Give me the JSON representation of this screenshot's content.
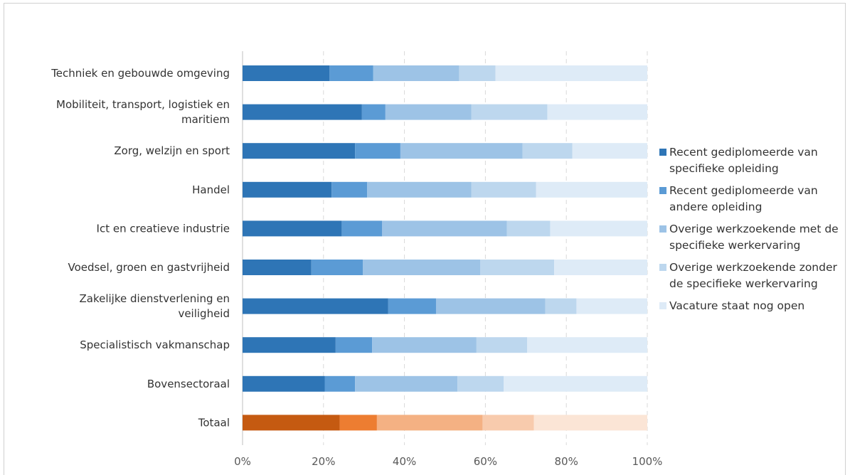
{
  "chart_data": {
    "type": "bar",
    "orientation": "horizontal",
    "stacked": true,
    "percent_stacked": true,
    "categories": [
      [
        "Techniek en gebouwde omgeving"
      ],
      [
        "Mobiliteit, transport, logistiek en",
        "maritiem"
      ],
      [
        "Zorg, welzijn en sport"
      ],
      [
        "Handel"
      ],
      [
        "Ict en creatieve industrie"
      ],
      [
        "Voedsel, groen en gastvrijheid"
      ],
      [
        "Zakelijke dienstverlening en",
        "veiligheid"
      ],
      [
        "Specialistisch vakmanschap"
      ],
      [
        "Bovensectoraal"
      ],
      [
        "Totaal"
      ]
    ],
    "series": [
      {
        "name": [
          "Recent gediplomeerde van",
          "specifieke opleiding"
        ],
        "color": "#2e75b6",
        "highlight_color": "#c55a11",
        "values": [
          21.5,
          29.5,
          27.8,
          22.0,
          24.5,
          17.0,
          36.0,
          23.0,
          20.3,
          24.0
        ]
      },
      {
        "name": [
          "Recent gediplomeerde van",
          "andere opleiding"
        ],
        "color": "#5b9bd5",
        "highlight_color": "#ed7d31",
        "values": [
          10.8,
          5.8,
          11.2,
          8.8,
          10.0,
          12.7,
          11.8,
          9.0,
          7.5,
          9.2
        ]
      },
      {
        "name": [
          "Overige werkzoekende met de",
          "specifieke werkervaring"
        ],
        "color": "#9dc3e6",
        "highlight_color": "#f4b183",
        "values": [
          21.2,
          21.2,
          30.2,
          25.7,
          30.8,
          29.0,
          27.0,
          25.8,
          25.3,
          26.1
        ]
      },
      {
        "name": [
          "Overige werkzoekende zonder",
          "de specifieke werkervaring"
        ],
        "color": "#bdd7ee",
        "highlight_color": "#f8cbad",
        "values": [
          9.0,
          18.8,
          12.3,
          16.0,
          10.7,
          18.3,
          7.7,
          12.5,
          11.4,
          12.7
        ]
      },
      {
        "name": [
          "Vacature staat nog open"
        ],
        "color": "#deebf7",
        "highlight_color": "#fbe5d6",
        "values": [
          37.5,
          24.7,
          18.5,
          27.5,
          24.0,
          23.0,
          17.5,
          29.7,
          35.5,
          28.0
        ]
      }
    ],
    "highlight_category": "Totaal",
    "xlim": [
      0,
      100
    ],
    "xticks": [
      "0%",
      "20%",
      "40%",
      "60%",
      "80%",
      "100%"
    ],
    "grid": "vertical dashed",
    "legend_position": "right",
    "title": "",
    "xlabel": "",
    "ylabel": ""
  }
}
